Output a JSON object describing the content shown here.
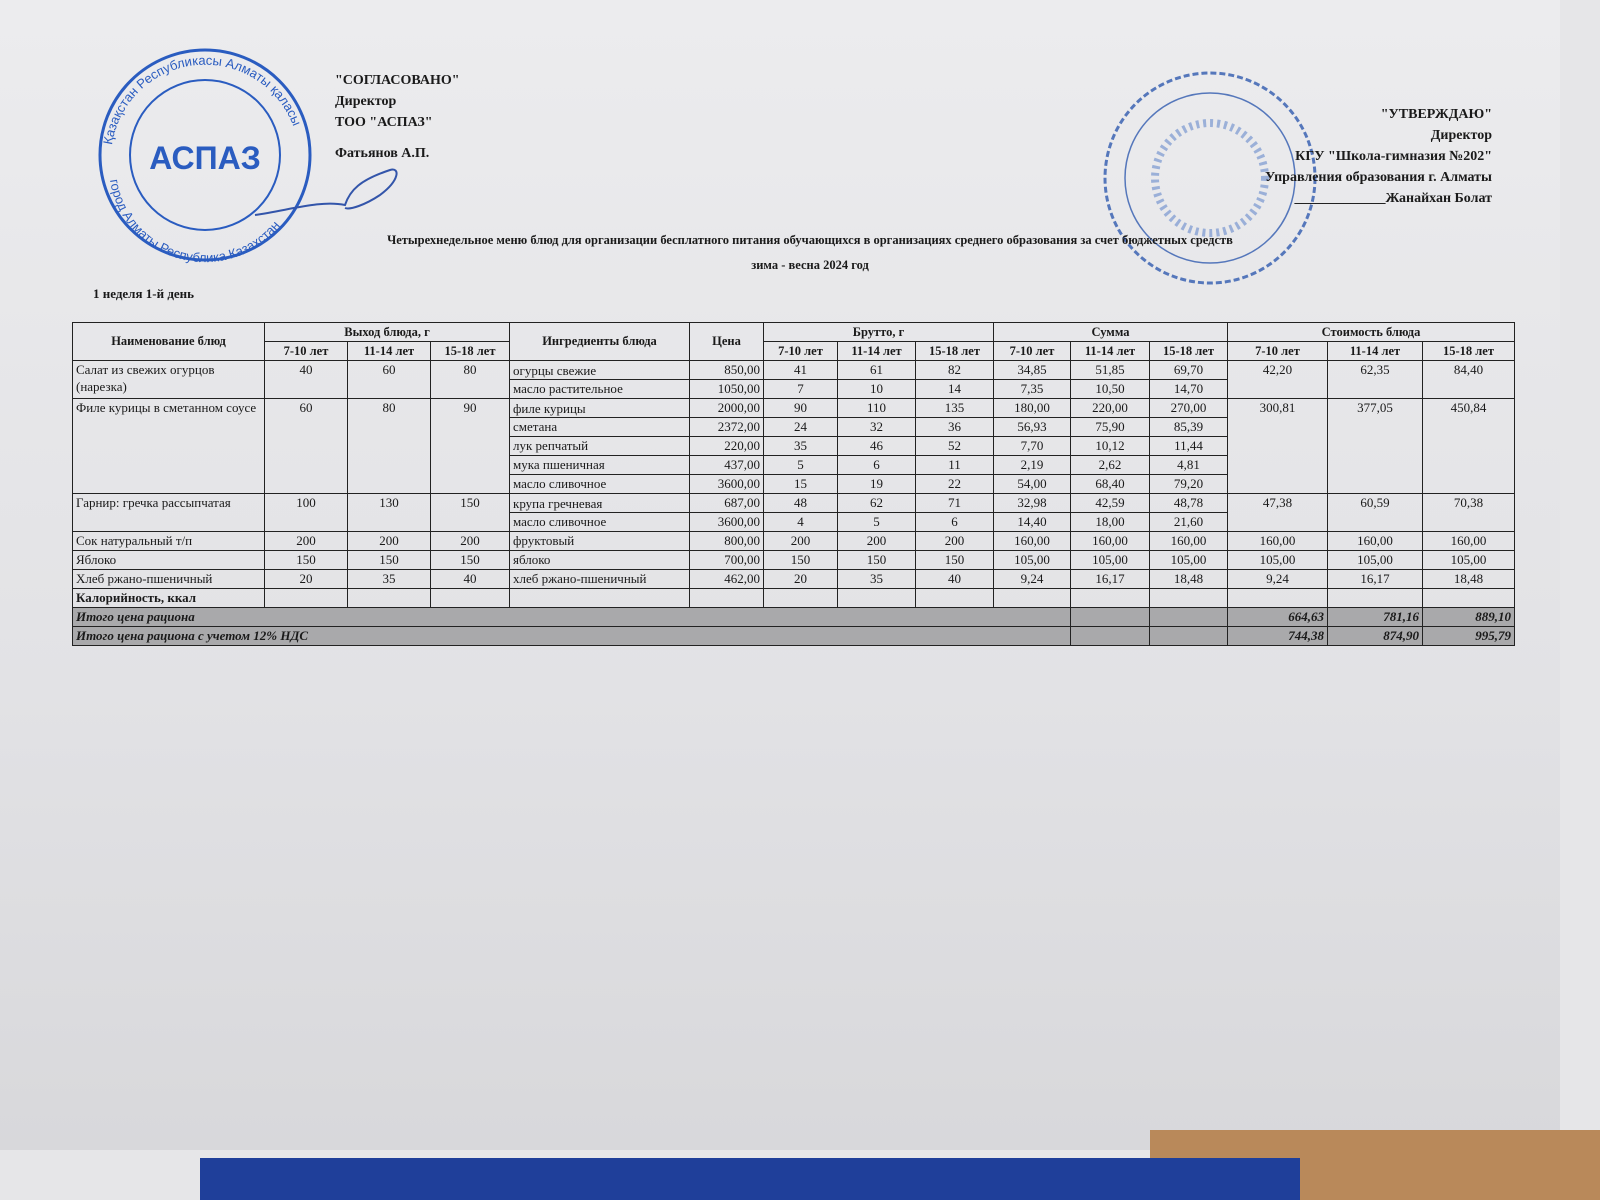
{
  "left_block": {
    "l1": "\"СОГЛАСОВАНО\"",
    "l2": "Директор",
    "l3": "ТОО \"АСПАЗ\"",
    "l4": "Фатьянов А.П."
  },
  "right_block": {
    "l1": "\"УТВЕРЖДАЮ\"",
    "l2": "Директор",
    "l3": "КГУ \"Школа-гимназия №202\"",
    "l4": "Управления образования г. Алматы",
    "l5": "_____________Жанайхан Болат"
  },
  "stamp_left": {
    "outer_top": "Қазақстан Республикасы Алматы қаласы",
    "big": "АСПАЗ",
    "outer_bottom": "город Алматы Республика Казахстан",
    "color": "#2a5cc0"
  },
  "stamp_right": {
    "color": "#5577bb"
  },
  "title": "Четырехнедельное меню блюд для организации бесплатного питания обучающихся в организациях среднего образования за счет бюджетных средств",
  "subtitle": "зима - весна 2024 год",
  "day": "1 неделя 1-й день",
  "headers": {
    "name": "Наименование блюд",
    "yield": "Выход блюда, г",
    "ingredients": "Ингредиенты блюда",
    "price": "Цена",
    "brutto": "Брутто, г",
    "sum": "Сумма",
    "cost": "Стоимость блюда",
    "ages": [
      "7-10 лет",
      "11-14 лет",
      "15-18 лет"
    ]
  },
  "dishes": [
    {
      "name": "Салат из свежих огурцов (нарезка)",
      "yield": [
        "40",
        "60",
        "80"
      ],
      "cost": [
        "42,20",
        "62,35",
        "84,40"
      ],
      "ingredients": [
        {
          "name": "огурцы свежие",
          "price": "850,00",
          "brutto": [
            "41",
            "61",
            "82"
          ],
          "sum": [
            "34,85",
            "51,85",
            "69,70"
          ]
        },
        {
          "name": "масло растительное",
          "price": "1050,00",
          "brutto": [
            "7",
            "10",
            "14"
          ],
          "sum": [
            "7,35",
            "10,50",
            "14,70"
          ]
        }
      ]
    },
    {
      "name": "Филе курицы в сметанном соусе",
      "yield": [
        "60",
        "80",
        "90"
      ],
      "cost": [
        "300,81",
        "377,05",
        "450,84"
      ],
      "ingredients": [
        {
          "name": "филе курицы",
          "price": "2000,00",
          "brutto": [
            "90",
            "110",
            "135"
          ],
          "sum": [
            "180,00",
            "220,00",
            "270,00"
          ]
        },
        {
          "name": "сметана",
          "price": "2372,00",
          "brutto": [
            "24",
            "32",
            "36"
          ],
          "sum": [
            "56,93",
            "75,90",
            "85,39"
          ]
        },
        {
          "name": "лук репчатый",
          "price": "220,00",
          "brutto": [
            "35",
            "46",
            "52"
          ],
          "sum": [
            "7,70",
            "10,12",
            "11,44"
          ]
        },
        {
          "name": "мука пшеничная",
          "price": "437,00",
          "brutto": [
            "5",
            "6",
            "11"
          ],
          "sum": [
            "2,19",
            "2,62",
            "4,81"
          ]
        },
        {
          "name": "масло сливочное",
          "price": "3600,00",
          "brutto": [
            "15",
            "19",
            "22"
          ],
          "sum": [
            "54,00",
            "68,40",
            "79,20"
          ]
        }
      ]
    },
    {
      "name": "Гарнир: гречка рассыпчатая",
      "yield": [
        "100",
        "130",
        "150"
      ],
      "cost": [
        "47,38",
        "60,59",
        "70,38"
      ],
      "ingredients": [
        {
          "name": "крупа гречневая",
          "price": "687,00",
          "brutto": [
            "48",
            "62",
            "71"
          ],
          "sum": [
            "32,98",
            "42,59",
            "48,78"
          ]
        },
        {
          "name": "масло сливочное",
          "price": "3600,00",
          "brutto": [
            "4",
            "5",
            "6"
          ],
          "sum": [
            "14,40",
            "18,00",
            "21,60"
          ]
        }
      ]
    },
    {
      "name": "Сок натуральный т/п",
      "yield": [
        "200",
        "200",
        "200"
      ],
      "cost": [
        "160,00",
        "160,00",
        "160,00"
      ],
      "ingredients": [
        {
          "name": "фруктовый",
          "price": "800,00",
          "brutto": [
            "200",
            "200",
            "200"
          ],
          "sum": [
            "160,00",
            "160,00",
            "160,00"
          ]
        }
      ]
    },
    {
      "name": "Яблоко",
      "yield": [
        "150",
        "150",
        "150"
      ],
      "cost": [
        "105,00",
        "105,00",
        "105,00"
      ],
      "ingredients": [
        {
          "name": "яблоко",
          "price": "700,00",
          "brutto": [
            "150",
            "150",
            "150"
          ],
          "sum": [
            "105,00",
            "105,00",
            "105,00"
          ]
        }
      ]
    },
    {
      "name": "Хлеб ржано-пшеничный",
      "yield": [
        "20",
        "35",
        "40"
      ],
      "cost": [
        "9,24",
        "16,17",
        "18,48"
      ],
      "ingredients": [
        {
          "name": "хлеб ржано-пшеничный",
          "price": "462,00",
          "brutto": [
            "20",
            "35",
            "40"
          ],
          "sum": [
            "9,24",
            "16,17",
            "18,48"
          ]
        }
      ]
    }
  ],
  "calories_label": "Калорийность, ккал",
  "totals": [
    {
      "label": "Итого цена рациона",
      "values": [
        "664,63",
        "781,16",
        "889,10"
      ]
    },
    {
      "label": "Итого цена рациона с учетом 12% НДС",
      "values": [
        "744,38",
        "874,90",
        "995,79"
      ]
    }
  ]
}
